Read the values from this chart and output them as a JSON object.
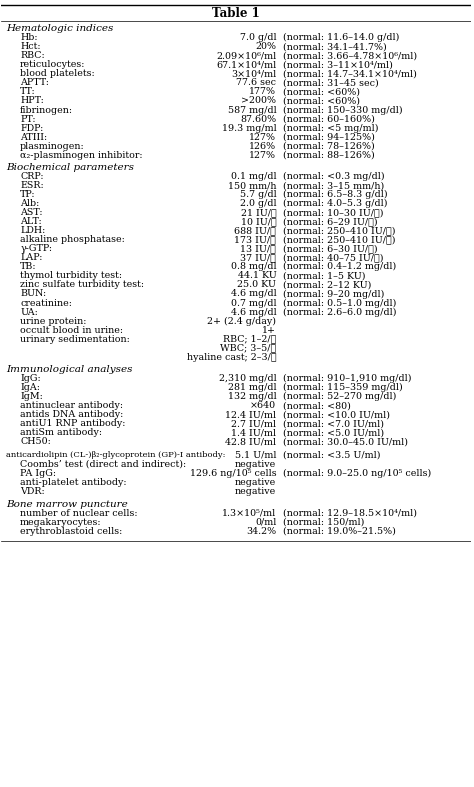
{
  "title": "Table 1",
  "sections": [
    {
      "header": "Hematologic indices",
      "rows": [
        {
          "label": "Hb:",
          "value": "7.0 g/dl",
          "normal": "(normal: 11.6–14.0 g/dl)"
        },
        {
          "label": "Hct:",
          "value": "20%",
          "normal": "(normal: 34.1–41.7%)"
        },
        {
          "label": "RBC:",
          "value": "2.09×10⁶/ml",
          "normal": "(normal: 3.66–4.78×10⁶/ml)"
        },
        {
          "label": "reticulocytes:",
          "value": "67.1×10⁴/ml",
          "normal": "(normal: 3–11×10⁴/ml)"
        },
        {
          "label": "blood platelets:",
          "value": "3×10⁴/ml",
          "normal": "(normal: 14.7–34.1×10⁴/ml)"
        },
        {
          "label": "APTT:",
          "value": "77.6 sec",
          "normal": "(normal: 31–45 sec)"
        },
        {
          "label": "TT:",
          "value": "177%",
          "normal": "(normal: <60%)"
        },
        {
          "label": "HPT:",
          "value": ">200%",
          "normal": "(normal: <60%)"
        },
        {
          "label": "fibrinogen:",
          "value": "587 mg/dl",
          "normal": "(normal: 150–330 mg/dl)"
        },
        {
          "label": "PT:",
          "value": "87.60%",
          "normal": "(normal: 60–160%)"
        },
        {
          "label": "FDP:",
          "value": "19.3 mg/ml",
          "normal": "(normal: <5 mg/ml)"
        },
        {
          "label": "ATIII:",
          "value": "127%",
          "normal": "(normal: 94–125%)"
        },
        {
          "label": "plasminogen:",
          "value": "126%",
          "normal": "(normal: 78–126%)"
        },
        {
          "label": "α₂-plasminogen inhibitor:",
          "value": "127%",
          "normal": "(normal: 88–126%)"
        }
      ]
    },
    {
      "header": "Biochemical parameters",
      "rows": [
        {
          "label": "CRP:",
          "value": "0.1 mg/dl",
          "normal": "(normal: <0.3 mg/dl)"
        },
        {
          "label": "ESR:",
          "value": "150 mm/h",
          "normal": "(normal: 3–15 mm/h)"
        },
        {
          "label": "TP:",
          "value": "5.7 g/dl",
          "normal": "(normal: 6.5–8.3 g/dl)"
        },
        {
          "label": "Alb:",
          "value": "2.0 g/dl",
          "normal": "(normal: 4.0–5.3 g/dl)"
        },
        {
          "label": "AST:",
          "value": "21 IU/ℓ",
          "normal": "(normal: 10–30 IU/ℓ)"
        },
        {
          "label": "ALT:",
          "value": "10 IU/ℓ",
          "normal": "(normal: 6–29 IU/ℓ)"
        },
        {
          "label": "LDH:",
          "value": "688 IU/ℓ",
          "normal": "(normal: 250–410 IU/ℓ)"
        },
        {
          "label": "alkaline phosphatase:",
          "value": "173 IU/ℓ",
          "normal": "(normal: 250–410 IU/ℓ)"
        },
        {
          "label": "γ-GTP:",
          "value": "13 IU/ℓ",
          "normal": "(normal: 6–30 IU/ℓ)"
        },
        {
          "label": "LAP:",
          "value": "37 IU/ℓ",
          "normal": "(normal: 40–75 IU/ℓ)"
        },
        {
          "label": "TB:",
          "value": "0.8 mg/dl",
          "normal": "(normal: 0.4–1.2 mg/dl)"
        },
        {
          "label": "thymol turbidity test:",
          "value": "44.1 KU",
          "normal": "(normal: 1–5 KU)"
        },
        {
          "label": "zinc sulfate turbidity test:",
          "value": "25.0 KU",
          "normal": "(normal: 2–12 KU)"
        },
        {
          "label": "BUN:",
          "value": "4.6 mg/dl",
          "normal": "(normal: 9–20 mg/dl)"
        },
        {
          "label": "creatinine:",
          "value": "0.7 mg/dl",
          "normal": "(normal: 0.5–1.0 mg/dl)"
        },
        {
          "label": "UA:",
          "value": "4.6 mg/dl",
          "normal": "(normal: 2.6–6.0 mg/dl)"
        },
        {
          "label": "urine protein:",
          "value": "2+ (2.4 g/day)",
          "normal": ""
        },
        {
          "label": "occult blood in urine:",
          "value": "1+",
          "normal": ""
        },
        {
          "label": "urinary sedimentation:",
          "value": "RBC; 1–2/ℓ",
          "normal": ""
        },
        {
          "label": "",
          "value": "WBC; 3–5/ℓ",
          "normal": ""
        },
        {
          "label": "",
          "value": "hyaline cast; 2–3/ℓ",
          "normal": ""
        }
      ]
    },
    {
      "header": "Immunological analyses",
      "rows": [
        {
          "label": "IgG:",
          "value": "2,310 mg/dl",
          "normal": "(normal: 910–1,910 mg/dl)"
        },
        {
          "label": "IgA:",
          "value": "281 mg/dl",
          "normal": "(normal: 115–359 mg/dl)"
        },
        {
          "label": "IgM:",
          "value": "132 mg/dl",
          "normal": "(normal: 52–270 mg/dl)"
        },
        {
          "label": "antinuclear antibody:",
          "value": "×640",
          "normal": "(normal: <80)"
        },
        {
          "label": "antids DNA antibody:",
          "value": "12.4 IU/ml",
          "normal": "(normal: <10.0 IU/ml)"
        },
        {
          "label": "antiU1 RNP antibody:",
          "value": "2.7 IU/ml",
          "normal": "(normal: <7.0 IU/ml)"
        },
        {
          "label": "antiSm antibody:",
          "value": "1.4 IU/ml",
          "normal": "(normal: <5.0 IU/ml)"
        },
        {
          "label": "CH50:",
          "value": "42.8 IU/ml",
          "normal": "(normal: 30.0–45.0 IU/ml)"
        },
        {
          "label": "",
          "value": "",
          "normal": ""
        },
        {
          "label": "anticardiolipin (CL-)β₂-glycoprotein (GP)-I antibody:",
          "value": "5.1 U/ml",
          "normal": "(normal: <3.5 U/ml)"
        },
        {
          "label": "Coombs’ test (direct and indirect):",
          "value": "negative",
          "normal": ""
        },
        {
          "label": "PA IgG:",
          "value": "129.6 ng/10⁵ cells",
          "normal": "(normal: 9.0–25.0 ng/10⁵ cells)"
        },
        {
          "label": "anti-platelet antibody:",
          "value": "negative",
          "normal": ""
        },
        {
          "label": "VDR:",
          "value": "negative",
          "normal": ""
        }
      ]
    },
    {
      "header": "Bone marrow puncture",
      "rows": [
        {
          "label": "number of nuclear cells:",
          "value": "1.3×10⁵/ml",
          "normal": "(normal: 12.9–18.5×10⁴/ml)"
        },
        {
          "label": "megakaryocytes:",
          "value": "0/ml",
          "normal": "(normal: 150/ml)"
        },
        {
          "label": "erythroblastoid cells:",
          "value": "34.2%",
          "normal": "(normal: 19.0%–21.5%)"
        }
      ]
    }
  ]
}
